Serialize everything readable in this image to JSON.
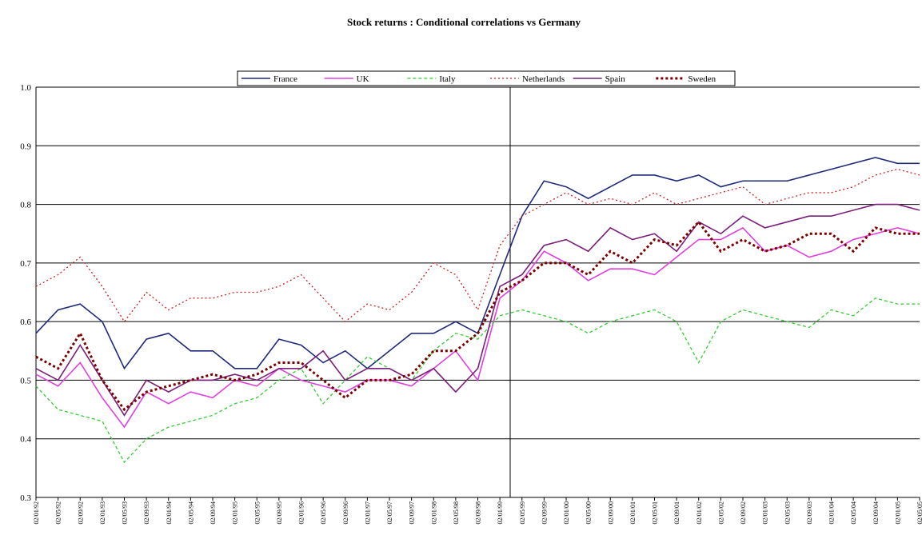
{
  "chart_data": {
    "type": "line",
    "title": "Stock returns : Conditional correlations vs Germany",
    "categories": [
      "02/01/92",
      "02/05/92",
      "02/09/92",
      "02/01/93",
      "02/05/93",
      "02/09/93",
      "02/01/94",
      "02/05/94",
      "02/09/94",
      "02/01/95",
      "02/05/95",
      "02/09/95",
      "02/01/96",
      "02/05/96",
      "02/09/96",
      "02/01/97",
      "02/05/97",
      "02/09/97",
      "02/01/98",
      "02/05/98",
      "02/09/98",
      "02/01/99",
      "02/05/99",
      "02/09/99",
      "02/01/00",
      "02/05/00",
      "02/09/00",
      "02/01/01",
      "02/05/01",
      "02/09/01",
      "02/01/02",
      "02/05/02",
      "02/09/02",
      "02/01/03",
      "02/05/03",
      "02/09/03",
      "02/01/04",
      "02/05/04",
      "02/09/04",
      "02/01/05",
      "02/05/05"
    ],
    "series": [
      {
        "name": "France",
        "color": "#1f2a7a",
        "style": "solid",
        "values": [
          0.58,
          0.62,
          0.63,
          0.6,
          0.52,
          0.57,
          0.58,
          0.55,
          0.55,
          0.52,
          0.52,
          0.57,
          0.56,
          0.53,
          0.55,
          0.52,
          0.55,
          0.58,
          0.58,
          0.6,
          0.58,
          0.68,
          0.78,
          0.84,
          0.83,
          0.81,
          0.83,
          0.85,
          0.85,
          0.84,
          0.85,
          0.83,
          0.84,
          0.84,
          0.84,
          0.85,
          0.86,
          0.87,
          0.88,
          0.87,
          0.87
        ]
      },
      {
        "name": "UK",
        "color": "#e040e0",
        "style": "solid",
        "values": [
          0.51,
          0.49,
          0.53,
          0.47,
          0.42,
          0.48,
          0.46,
          0.48,
          0.47,
          0.5,
          0.49,
          0.52,
          0.5,
          0.49,
          0.48,
          0.5,
          0.5,
          0.49,
          0.52,
          0.55,
          0.5,
          0.64,
          0.67,
          0.72,
          0.7,
          0.67,
          0.69,
          0.69,
          0.68,
          0.71,
          0.74,
          0.74,
          0.76,
          0.72,
          0.73,
          0.71,
          0.72,
          0.74,
          0.75,
          0.76,
          0.75
        ]
      },
      {
        "name": "Italy",
        "color": "#33cc33",
        "style": "dashed",
        "values": [
          0.49,
          0.45,
          0.44,
          0.43,
          0.36,
          0.4,
          0.42,
          0.43,
          0.44,
          0.46,
          0.47,
          0.5,
          0.52,
          0.46,
          0.5,
          0.54,
          0.52,
          0.5,
          0.55,
          0.58,
          0.57,
          0.61,
          0.62,
          0.61,
          0.6,
          0.58,
          0.6,
          0.61,
          0.62,
          0.6,
          0.53,
          0.6,
          0.62,
          0.61,
          0.6,
          0.59,
          0.62,
          0.61,
          0.64,
          0.63,
          0.63
        ]
      },
      {
        "name": "Netherlands",
        "color": "#cc2222",
        "style": "dotted",
        "values": [
          0.66,
          0.68,
          0.71,
          0.66,
          0.6,
          0.65,
          0.62,
          0.64,
          0.64,
          0.65,
          0.65,
          0.66,
          0.68,
          0.64,
          0.6,
          0.63,
          0.62,
          0.65,
          0.7,
          0.68,
          0.62,
          0.73,
          0.78,
          0.8,
          0.82,
          0.8,
          0.81,
          0.8,
          0.82,
          0.8,
          0.81,
          0.82,
          0.83,
          0.8,
          0.81,
          0.82,
          0.82,
          0.83,
          0.85,
          0.86,
          0.85
        ]
      },
      {
        "name": "Spain",
        "color": "#7a1f7a",
        "style": "solid",
        "values": [
          0.52,
          0.5,
          0.56,
          0.5,
          0.44,
          0.5,
          0.48,
          0.5,
          0.5,
          0.51,
          0.5,
          0.52,
          0.52,
          0.55,
          0.5,
          0.52,
          0.52,
          0.5,
          0.52,
          0.48,
          0.52,
          0.66,
          0.68,
          0.73,
          0.74,
          0.72,
          0.76,
          0.74,
          0.75,
          0.72,
          0.77,
          0.75,
          0.78,
          0.76,
          0.77,
          0.78,
          0.78,
          0.79,
          0.8,
          0.8,
          0.79
        ]
      },
      {
        "name": "Sweden",
        "color": "#7a0000",
        "style": "thick-dotted",
        "values": [
          0.54,
          0.52,
          0.58,
          0.5,
          0.45,
          0.48,
          0.49,
          0.5,
          0.51,
          0.5,
          0.51,
          0.53,
          0.53,
          0.5,
          0.47,
          0.5,
          0.5,
          0.51,
          0.55,
          0.55,
          0.58,
          0.65,
          0.67,
          0.7,
          0.7,
          0.68,
          0.72,
          0.7,
          0.74,
          0.73,
          0.77,
          0.72,
          0.74,
          0.72,
          0.73,
          0.75,
          0.75,
          0.72,
          0.76,
          0.75,
          0.75
        ]
      }
    ],
    "ylim": [
      0.3,
      1.0
    ],
    "yticks": [
      0.3,
      0.4,
      0.5,
      0.6,
      0.7,
      0.8,
      0.9,
      {
        "value": 1.0,
        "label": "1.0"
      }
    ],
    "grid": true
  }
}
